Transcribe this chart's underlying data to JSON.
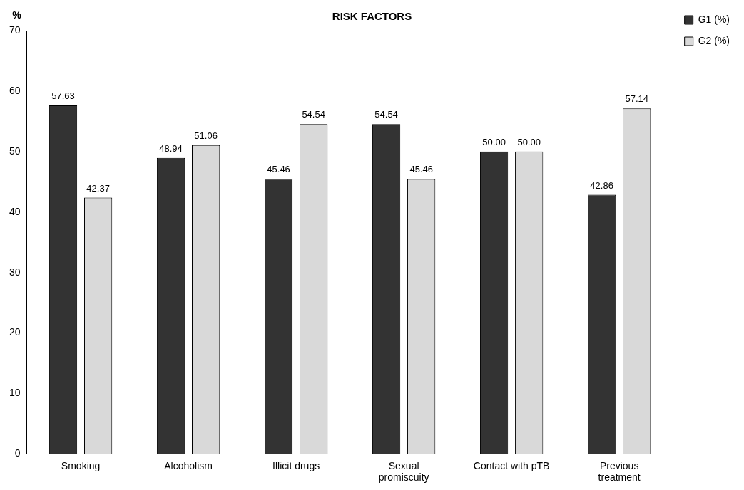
{
  "chart_data": {
    "type": "bar",
    "title": "RISK FACTORS",
    "ylabel": "%",
    "categories": [
      "Smoking",
      "Alcoholism",
      "Illicit drugs",
      "Sexual promiscuity",
      "Contact with pTB",
      "Previous treatment"
    ],
    "series": [
      {
        "name": "G1 (%)",
        "color": "#333333",
        "values": [
          57.63,
          48.94,
          45.46,
          54.54,
          50.0,
          42.86
        ],
        "value_labels": [
          "57.63",
          "48.94",
          "45.46",
          "54.54",
          "50.00",
          "42.86"
        ]
      },
      {
        "name": "G2 (%)",
        "color": "#d9d9d9",
        "values": [
          42.37,
          51.06,
          54.54,
          45.46,
          50.0,
          57.14
        ],
        "value_labels": [
          "42.37",
          "51.06",
          "54.54",
          "45.46",
          "50.00",
          "57.14"
        ]
      }
    ],
    "ylim": [
      0,
      70
    ],
    "yticks": [
      0,
      10,
      20,
      30,
      40,
      50,
      60,
      70
    ],
    "grid": false,
    "legend": "top right"
  }
}
